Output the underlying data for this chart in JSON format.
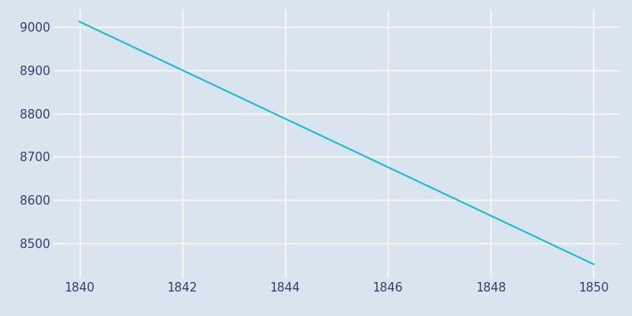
{
  "x": [
    1840,
    1850
  ],
  "y": [
    9012,
    8452
  ],
  "line_color": "#17becf",
  "background_color": "#dae4ef",
  "grid_color": "#ffffff",
  "text_color": "#2e3d6b",
  "xlim": [
    1839.5,
    1850.5
  ],
  "ylim": [
    8420,
    9040
  ],
  "xticks": [
    1840,
    1842,
    1844,
    1846,
    1848,
    1850
  ],
  "yticks": [
    8500,
    8600,
    8700,
    8800,
    8900,
    9000
  ],
  "line_width": 1.5,
  "figsize": [
    8.0,
    4.0
  ],
  "dpi": 100
}
